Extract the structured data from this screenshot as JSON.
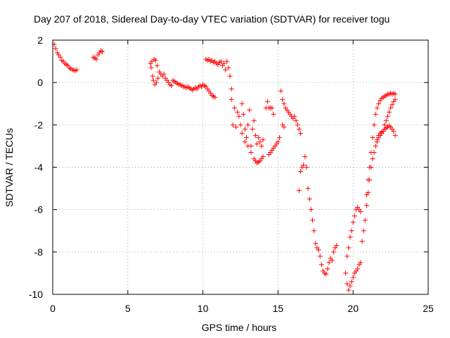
{
  "chart_data": {
    "type": "scatter",
    "title": "Day 207 of 2018, Sidereal Day-to-day VTEC variation (SDTVAR) for receiver togu",
    "xlabel": "GPS time / hours",
    "ylabel": "SDTVAR / TECUs",
    "xlim": [
      0,
      25
    ],
    "ylim": [
      -10,
      2
    ],
    "xticks": [
      0,
      5,
      10,
      15,
      20,
      25
    ],
    "yticks": [
      -10,
      -8,
      -6,
      -4,
      -2,
      0,
      2
    ],
    "grid": true,
    "legend": "none",
    "marker": "plus",
    "color": "#ff0000",
    "series": [
      {
        "points": [
          [
            0.1,
            1.8
          ],
          [
            0.2,
            1.6
          ],
          [
            0.3,
            1.4
          ],
          [
            0.4,
            1.3
          ],
          [
            0.5,
            1.2
          ],
          [
            0.6,
            1.05
          ],
          [
            0.7,
            1.0
          ],
          [
            0.8,
            0.9
          ],
          [
            0.9,
            0.85
          ],
          [
            1.0,
            0.8
          ],
          [
            1.1,
            0.7
          ],
          [
            1.2,
            0.65
          ],
          [
            1.3,
            0.6
          ],
          [
            1.4,
            0.6
          ],
          [
            1.5,
            0.55
          ],
          [
            1.6,
            0.6
          ],
          [
            2.7,
            1.2
          ],
          [
            2.8,
            1.15
          ],
          [
            2.9,
            1.1
          ],
          [
            3.0,
            1.3
          ],
          [
            3.1,
            1.4
          ],
          [
            3.2,
            1.5
          ],
          [
            3.3,
            1.45
          ],
          [
            6.5,
            0.9
          ],
          [
            6.55,
            0.7
          ],
          [
            6.6,
            1.0
          ],
          [
            6.65,
            0.3
          ],
          [
            6.7,
            0.1
          ],
          [
            6.75,
            1.1
          ],
          [
            6.8,
            -0.1
          ],
          [
            6.85,
            1.05
          ],
          [
            6.9,
            0.0
          ],
          [
            6.95,
            0.8
          ],
          [
            7.0,
            0.2
          ],
          [
            7.1,
            0.5
          ],
          [
            7.2,
            0.4
          ],
          [
            7.3,
            0.3
          ],
          [
            7.4,
            0.4
          ],
          [
            7.5,
            0.2
          ],
          [
            7.6,
            0.1
          ],
          [
            7.7,
            0.0
          ],
          [
            7.8,
            -0.1
          ],
          [
            7.9,
            -0.15
          ],
          [
            8.0,
            0.1
          ],
          [
            8.1,
            0.05
          ],
          [
            8.2,
            0.0
          ],
          [
            8.3,
            -0.05
          ],
          [
            8.4,
            -0.1
          ],
          [
            8.5,
            -0.1
          ],
          [
            8.6,
            -0.15
          ],
          [
            8.7,
            -0.2
          ],
          [
            8.8,
            -0.2
          ],
          [
            8.9,
            -0.25
          ],
          [
            9.0,
            -0.2
          ],
          [
            9.1,
            -0.25
          ],
          [
            9.2,
            -0.3
          ],
          [
            9.3,
            -0.35
          ],
          [
            9.4,
            -0.3
          ],
          [
            9.5,
            -0.25
          ],
          [
            9.6,
            -0.3
          ],
          [
            9.7,
            -0.2
          ],
          [
            9.8,
            -0.15
          ],
          [
            9.9,
            -0.2
          ],
          [
            10.0,
            -0.1
          ],
          [
            10.1,
            -0.15
          ],
          [
            10.2,
            -0.2
          ],
          [
            10.3,
            -0.3
          ],
          [
            10.4,
            -0.4
          ],
          [
            10.5,
            -0.5
          ],
          [
            10.6,
            -0.6
          ],
          [
            10.7,
            -0.65
          ],
          [
            10.8,
            -0.7
          ],
          [
            10.2,
            1.1
          ],
          [
            10.3,
            1.05
          ],
          [
            10.4,
            1.1
          ],
          [
            10.5,
            1.0
          ],
          [
            10.6,
            1.05
          ],
          [
            10.7,
            0.95
          ],
          [
            10.8,
            1.0
          ],
          [
            10.9,
            0.9
          ],
          [
            11.0,
            0.85
          ],
          [
            11.1,
            0.95
          ],
          [
            11.2,
            1.0
          ],
          [
            11.3,
            0.8
          ],
          [
            11.4,
            0.9
          ],
          [
            11.5,
            0.6
          ],
          [
            11.6,
            1.0
          ],
          [
            11.7,
            0.7
          ],
          [
            11.8,
            0.3
          ],
          [
            11.9,
            -0.3
          ],
          [
            11.9,
            -0.8
          ],
          [
            12.0,
            -2.0
          ],
          [
            12.1,
            -1.2
          ],
          [
            12.2,
            -2.1
          ],
          [
            12.3,
            -1.4
          ],
          [
            12.4,
            -1.6
          ],
          [
            12.5,
            -2.0
          ],
          [
            12.6,
            -1.0
          ],
          [
            12.7,
            -1.5
          ],
          [
            12.8,
            -2.2
          ],
          [
            12.9,
            -2.6
          ],
          [
            13.0,
            -2.0
          ],
          [
            13.1,
            -1.3
          ],
          [
            13.2,
            -3.0
          ],
          [
            13.3,
            -2.2
          ],
          [
            13.4,
            -1.8
          ],
          [
            13.5,
            -2.5
          ],
          [
            13.6,
            -2.9
          ],
          [
            13.7,
            -2.6
          ],
          [
            13.8,
            -2.8
          ],
          [
            13.9,
            -3.0
          ],
          [
            14.0,
            -2.7
          ],
          [
            12.6,
            -2.4
          ],
          [
            12.8,
            -2.8
          ],
          [
            13.0,
            -3.0
          ],
          [
            13.2,
            -3.3
          ],
          [
            13.4,
            -3.6
          ],
          [
            13.5,
            -3.7
          ],
          [
            13.6,
            -3.8
          ],
          [
            13.7,
            -3.75
          ],
          [
            13.8,
            -3.7
          ],
          [
            13.9,
            -3.6
          ],
          [
            14.0,
            -3.5
          ],
          [
            14.2,
            -1.2
          ],
          [
            14.3,
            -0.9
          ],
          [
            14.4,
            -1.2
          ],
          [
            14.5,
            -1.2
          ],
          [
            14.6,
            -1.2
          ],
          [
            14.7,
            -1.5
          ],
          [
            14.4,
            -3.4
          ],
          [
            14.5,
            -3.3
          ],
          [
            14.6,
            -3.2
          ],
          [
            14.7,
            -3.1
          ],
          [
            14.8,
            -3.0
          ],
          [
            14.9,
            -2.9
          ],
          [
            15.0,
            -2.8
          ],
          [
            15.1,
            -2.6
          ],
          [
            15.2,
            -0.4
          ],
          [
            15.3,
            -0.8
          ],
          [
            15.4,
            -1.0
          ],
          [
            15.5,
            -1.2
          ],
          [
            15.6,
            -1.3
          ],
          [
            15.7,
            -1.4
          ],
          [
            15.8,
            -1.5
          ],
          [
            15.9,
            -1.6
          ],
          [
            16.0,
            -1.7
          ],
          [
            15.3,
            -2.0
          ],
          [
            15.4,
            -2.1
          ],
          [
            16.1,
            -1.6
          ],
          [
            16.2,
            -1.8
          ],
          [
            16.3,
            -2.0
          ],
          [
            16.4,
            -2.2
          ],
          [
            16.5,
            -2.4
          ],
          [
            16.4,
            -5.1
          ],
          [
            16.5,
            -4.2
          ],
          [
            16.6,
            -4.0
          ],
          [
            16.7,
            -3.9
          ],
          [
            16.8,
            -3.5
          ],
          [
            16.9,
            -4.0
          ],
          [
            17.0,
            -5.0
          ],
          [
            17.1,
            -5.5
          ],
          [
            17.2,
            -6.0
          ],
          [
            17.3,
            -6.5
          ],
          [
            17.4,
            -7.0
          ],
          [
            17.5,
            -7.6
          ],
          [
            17.6,
            -7.8
          ],
          [
            17.7,
            -7.9
          ],
          [
            17.8,
            -8.2
          ],
          [
            17.9,
            -8.6
          ],
          [
            18.0,
            -8.9
          ],
          [
            18.1,
            -9.0
          ],
          [
            18.2,
            -9.05
          ],
          [
            18.3,
            -8.8
          ],
          [
            18.4,
            -8.5
          ],
          [
            18.5,
            -8.3
          ],
          [
            18.6,
            -8.4
          ],
          [
            18.7,
            -8.0
          ],
          [
            18.8,
            -7.8
          ],
          [
            18.9,
            -7.7
          ],
          [
            19.5,
            -9.0
          ],
          [
            19.6,
            -9.5
          ],
          [
            19.7,
            -9.8
          ],
          [
            19.8,
            -9.6
          ],
          [
            19.9,
            -9.4
          ],
          [
            20.0,
            -9.2
          ],
          [
            20.1,
            -9.0
          ],
          [
            20.2,
            -8.9
          ],
          [
            20.3,
            -8.8
          ],
          [
            20.4,
            -8.6
          ],
          [
            20.5,
            -8.5
          ],
          [
            19.6,
            -8.2
          ],
          [
            19.7,
            -7.8
          ],
          [
            19.8,
            -7.3
          ],
          [
            19.9,
            -7.0
          ],
          [
            20.0,
            -6.6
          ],
          [
            20.1,
            -6.3
          ],
          [
            20.2,
            -6.0
          ],
          [
            20.3,
            -5.9
          ],
          [
            20.4,
            -6.0
          ],
          [
            20.5,
            -6.1
          ],
          [
            20.6,
            -7.5
          ],
          [
            20.7,
            -7.0
          ],
          [
            20.8,
            -6.5
          ],
          [
            20.9,
            -5.8
          ],
          [
            21.0,
            -5.2
          ],
          [
            21.1,
            -4.6
          ],
          [
            21.2,
            -4.0
          ],
          [
            21.3,
            -3.6
          ],
          [
            21.4,
            -3.3
          ],
          [
            21.5,
            -3.0
          ],
          [
            21.6,
            -2.8
          ],
          [
            21.7,
            -2.6
          ],
          [
            21.8,
            -2.5
          ],
          [
            21.9,
            -2.4
          ],
          [
            22.0,
            -2.3
          ],
          [
            22.1,
            -2.2
          ],
          [
            22.2,
            -2.15
          ],
          [
            22.3,
            -2.1
          ],
          [
            22.4,
            -2.05
          ],
          [
            22.5,
            -2.1
          ],
          [
            22.6,
            -2.2
          ],
          [
            22.7,
            -2.3
          ],
          [
            22.8,
            -2.5
          ],
          [
            20.9,
            -5.3
          ],
          [
            21.0,
            -4.6
          ],
          [
            21.1,
            -4.0
          ],
          [
            21.2,
            -3.3
          ],
          [
            21.3,
            -2.6
          ],
          [
            21.4,
            -2.0
          ],
          [
            21.5,
            -1.5
          ],
          [
            21.6,
            -1.2
          ],
          [
            21.7,
            -1.0
          ],
          [
            21.8,
            -0.85
          ],
          [
            21.9,
            -0.75
          ],
          [
            22.0,
            -0.7
          ],
          [
            22.1,
            -0.65
          ],
          [
            22.2,
            -0.6
          ],
          [
            22.3,
            -0.55
          ],
          [
            22.4,
            -0.55
          ],
          [
            22.5,
            -0.5
          ],
          [
            22.6,
            -0.55
          ],
          [
            22.7,
            -0.5
          ],
          [
            22.8,
            -0.55
          ],
          [
            21.6,
            -2.7
          ],
          [
            21.7,
            -2.5
          ],
          [
            21.8,
            -2.4
          ],
          [
            21.9,
            -2.35
          ],
          [
            22.0,
            -2.3
          ],
          [
            22.1,
            -2.0
          ],
          [
            22.2,
            -1.8
          ],
          [
            22.3,
            -1.6
          ],
          [
            22.4,
            -1.4
          ],
          [
            22.5,
            -1.2
          ],
          [
            22.6,
            -1.05
          ],
          [
            22.7,
            -0.9
          ],
          [
            22.8,
            -0.8
          ]
        ]
      }
    ]
  }
}
